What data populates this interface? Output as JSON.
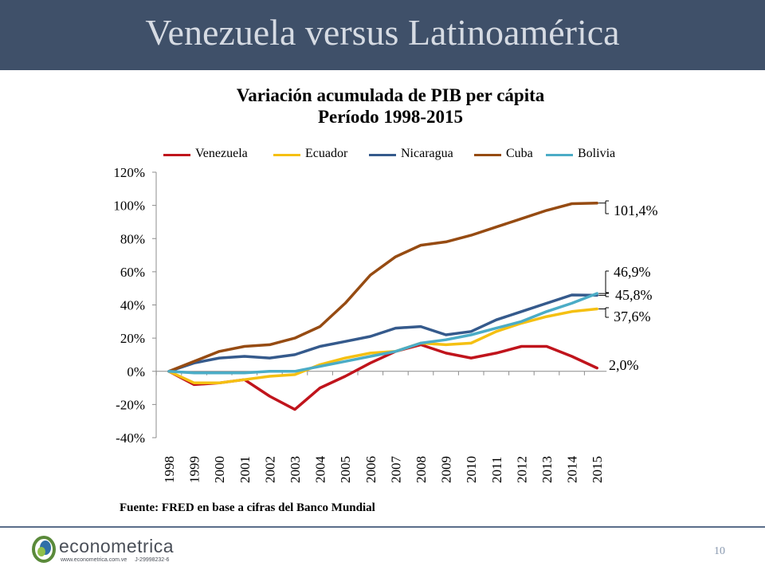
{
  "slide": {
    "title": "Venezuela versus Latinoamérica",
    "page_number": "10"
  },
  "chart_data": {
    "type": "line",
    "title": "Variación acumulada de PIB per cápita",
    "subtitle": "Período 1998-2015",
    "x": [
      "1998",
      "1999",
      "2000",
      "2001",
      "2002",
      "2003",
      "2004",
      "2005",
      "2006",
      "2007",
      "2008",
      "2009",
      "2010",
      "2011",
      "2012",
      "2013",
      "2014",
      "2015"
    ],
    "ylim": [
      -40,
      120
    ],
    "yticks": [
      -40,
      -20,
      0,
      20,
      40,
      60,
      80,
      100,
      120
    ],
    "ytick_labels": [
      "-40%",
      "-20%",
      "0%",
      "20%",
      "40%",
      "60%",
      "80%",
      "100%",
      "120%"
    ],
    "legend_position": "top",
    "grid": false,
    "series": [
      {
        "name": "Venezuela",
        "color": "#c0141c",
        "values": [
          0,
          -8,
          -7,
          -5,
          -15,
          -23,
          -10,
          -3,
          5,
          12,
          16,
          11,
          8,
          11,
          15,
          15,
          9,
          2.0
        ],
        "end_label": "2,0%"
      },
      {
        "name": "Ecuador",
        "color": "#f5c012",
        "values": [
          0,
          -7,
          -7,
          -5,
          -3,
          -2,
          4,
          8,
          11,
          12,
          17,
          16,
          17,
          24,
          29,
          33,
          36,
          37.6
        ],
        "end_label": "37,6%"
      },
      {
        "name": "Nicaragua",
        "color": "#355a8c",
        "values": [
          0,
          5,
          8,
          9,
          8,
          10,
          15,
          18,
          21,
          26,
          27,
          22,
          24,
          31,
          36,
          41,
          46,
          45.8
        ],
        "end_label": "45,8%"
      },
      {
        "name": "Cuba",
        "color": "#964b12",
        "values": [
          0,
          6,
          12,
          15,
          16,
          20,
          27,
          41,
          58,
          69,
          76,
          78,
          82,
          87,
          92,
          97,
          101,
          101.4
        ],
        "end_label": "101,4%"
      },
      {
        "name": "Bolivia",
        "color": "#4bacc6",
        "values": [
          0,
          -1,
          -1,
          -1,
          0,
          0,
          3,
          6,
          9,
          12,
          17,
          19,
          22,
          26,
          30,
          36,
          41,
          46.9
        ],
        "end_label": "46,9%"
      }
    ],
    "source": "Fuente: FRED en base a cifras del Banco Mundial"
  },
  "logo": {
    "name": "econometrica",
    "url": "www.econometrica.com.ve",
    "rif": "J-29998232-6"
  }
}
